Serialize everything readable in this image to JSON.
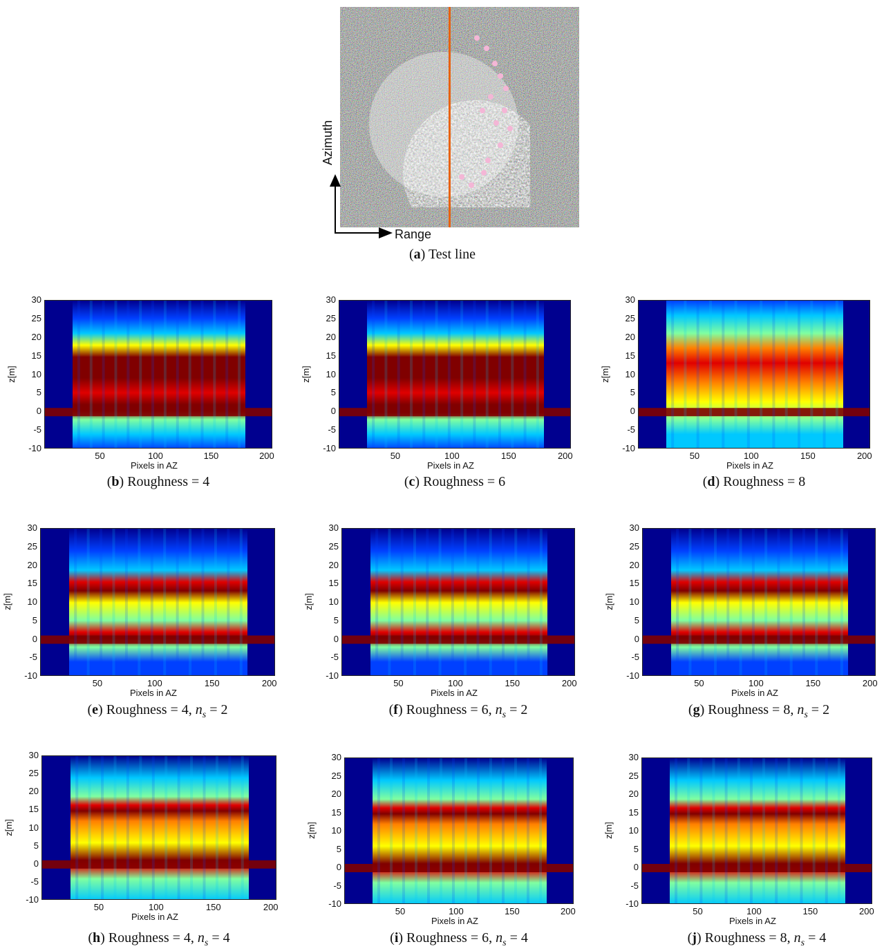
{
  "panel_a": {
    "caption_letter": "a",
    "caption_text": "Test line",
    "arrow_vertical_label": "Azimuth",
    "arrow_horizontal_label": "Range",
    "colors": {
      "line": "#e8620f",
      "noise_bg": "#5a6a5e"
    }
  },
  "plot_axes": {
    "ylabel": "z[m]",
    "xlabel": "Pixels in AZ",
    "yticks": [
      "30",
      "25",
      "20",
      "15",
      "10",
      "5",
      "0",
      "-5",
      "-10"
    ],
    "xticks": [
      "50",
      "100",
      "150",
      "200"
    ]
  },
  "panels": [
    {
      "letter": "b",
      "text": "Roughness = 4",
      "ns": ""
    },
    {
      "letter": "c",
      "text": "Roughness = 6",
      "ns": ""
    },
    {
      "letter": "d",
      "text": "Roughness = 8",
      "ns": ""
    },
    {
      "letter": "e",
      "text": "Roughness = 4, ",
      "ns": "2"
    },
    {
      "letter": "f",
      "text": "Roughness = 6, ",
      "ns": "2"
    },
    {
      "letter": "g",
      "text": "Roughness = 8, ",
      "ns": "2"
    },
    {
      "letter": "h",
      "text": "Roughness = 4, ",
      "ns": "4"
    },
    {
      "letter": "i",
      "text": "Roughness = 6, ",
      "ns": "4"
    },
    {
      "letter": "j",
      "text": "Roughness = 8, ",
      "ns": "4"
    }
  ],
  "ns_symbol": "n",
  "ns_sub": "s",
  "colormap": [
    "#00008f",
    "#0040ff",
    "#00c8ff",
    "#80ffa0",
    "#ffff00",
    "#ff8000",
    "#e00000",
    "#800000"
  ]
}
